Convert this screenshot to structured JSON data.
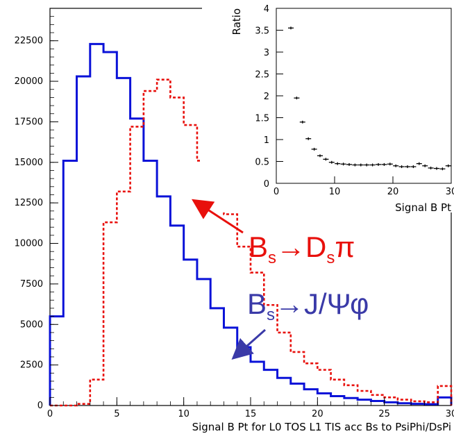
{
  "chart_data": [
    {
      "type": "histogram",
      "xlabel": "Signal B Pt for L0 TOS L1 TIS acc Bs to PsiPhi/DsPi",
      "ylabel": "",
      "xlim": [
        0,
        30
      ],
      "ylim": [
        0,
        24500
      ],
      "x_ticks": [
        "0",
        "5",
        "10",
        "15",
        "20",
        "25",
        "30"
      ],
      "y_ticks": [
        "0",
        "2500",
        "5000",
        "7500",
        "10000",
        "12500",
        "15000",
        "17500",
        "20000",
        "22500"
      ],
      "bin_edges": [
        0,
        1,
        2,
        3,
        4,
        5,
        6,
        7,
        8,
        9,
        10,
        11,
        12,
        13,
        14,
        15,
        16,
        17,
        18,
        19,
        20,
        21,
        22,
        23,
        24,
        25,
        26,
        27,
        28,
        29,
        30
      ],
      "series": [
        {
          "color": "#0a12d8",
          "style": "solid",
          "values": [
            5500,
            15100,
            20300,
            22300,
            21800,
            20200,
            17700,
            15100,
            12900,
            11100,
            9000,
            7800,
            6000,
            4800,
            3600,
            2700,
            2200,
            1700,
            1350,
            1000,
            750,
            580,
            460,
            360,
            280,
            200,
            140,
            100,
            80,
            500
          ]
        },
        {
          "color": "#e8100c",
          "style": "dashed",
          "values": [
            0,
            0,
            100,
            1600,
            11300,
            13200,
            17200,
            19400,
            20100,
            19000,
            17300,
            15100,
            12800,
            11800,
            9800,
            8200,
            6200,
            4500,
            3300,
            2600,
            2200,
            1600,
            1250,
            900,
            650,
            500,
            360,
            260,
            200,
            1200
          ]
        }
      ],
      "annotations": [
        {
          "text": "Bs→Dsπ",
          "color": "#e8100c",
          "arrow_target": [
            10.6,
            12700
          ]
        },
        {
          "text": "Bs→J/Ψφ",
          "color": "#3a3aa8",
          "arrow_target": [
            13.6,
            2800
          ]
        }
      ]
    },
    {
      "type": "scatter",
      "xlabel": "Signal B Pt",
      "ylabel": "Ratio",
      "xlim": [
        0,
        30
      ],
      "ylim": [
        0,
        4
      ],
      "x_ticks": [
        "0",
        "10",
        "20",
        "30"
      ],
      "y_ticks": [
        "0",
        "0.5",
        "1",
        "1.5",
        "2",
        "2.5",
        "3",
        "3.5",
        "4"
      ],
      "x": [
        2.5,
        3.5,
        4.5,
        5.5,
        6.5,
        7.5,
        8.5,
        9.5,
        10.5,
        11.5,
        12.5,
        13.5,
        14.5,
        15.5,
        16.5,
        17.5,
        18.5,
        19.5,
        20.5,
        21.5,
        22.5,
        23.5,
        24.5,
        25.5,
        26.5,
        27.5,
        28.5,
        29.5
      ],
      "y": [
        3.55,
        1.95,
        1.4,
        1.02,
        0.78,
        0.63,
        0.55,
        0.48,
        0.45,
        0.44,
        0.43,
        0.42,
        0.42,
        0.42,
        0.42,
        0.43,
        0.43,
        0.44,
        0.4,
        0.38,
        0.38,
        0.38,
        0.45,
        0.4,
        0.35,
        0.34,
        0.33,
        0.4
      ]
    }
  ],
  "annotations_text": {
    "red_main": "B",
    "red_sub1": "s",
    "red_mid": "→D",
    "red_sub2": "s",
    "red_end": "π",
    "blue_main": "B",
    "blue_sub1": "s",
    "blue_end": "→J/Ψφ"
  }
}
